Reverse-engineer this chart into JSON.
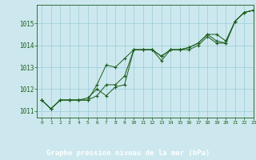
{
  "xlabel": "Graphe pression niveau de la mer (hPa)",
  "xlim": [
    -0.5,
    23
  ],
  "ylim": [
    1010.7,
    1015.85
  ],
  "yticks": [
    1011,
    1012,
    1013,
    1014,
    1015
  ],
  "xticks": [
    0,
    1,
    2,
    3,
    4,
    5,
    6,
    7,
    8,
    9,
    10,
    11,
    12,
    13,
    14,
    15,
    16,
    17,
    18,
    19,
    20,
    21,
    22,
    23
  ],
  "bg_color": "#cce8ee",
  "grid_color": "#99ccd6",
  "line_color": "#1a5c1a",
  "xlabel_bg": "#1a5c1a",
  "xlabel_fg": "#ffffff",
  "series": [
    [
      1011.5,
      1011.1,
      1011.5,
      1011.5,
      1011.5,
      1011.5,
      1011.7,
      1012.2,
      1012.2,
      1012.6,
      1013.8,
      1013.8,
      1013.8,
      1013.5,
      1013.8,
      1013.8,
      1013.9,
      1014.1,
      1014.5,
      1014.5,
      1014.2,
      1015.1,
      1015.5,
      1015.6
    ],
    [
      1011.5,
      1011.1,
      1011.5,
      1011.5,
      1011.5,
      1011.6,
      1012.0,
      1011.7,
      1012.1,
      1012.2,
      1013.8,
      1013.8,
      1013.8,
      1013.3,
      1013.8,
      1013.8,
      1013.8,
      1014.0,
      1014.4,
      1014.1,
      1014.1,
      1015.1,
      1015.5,
      1015.6
    ],
    [
      1011.5,
      1011.1,
      1011.5,
      1011.5,
      1011.5,
      1011.5,
      1012.2,
      1013.1,
      1013.0,
      1013.4,
      1013.8,
      1013.8,
      1013.8,
      1013.5,
      1013.8,
      1013.8,
      1013.9,
      1014.1,
      1014.5,
      1014.2,
      1014.1,
      1015.1,
      1015.5,
      1015.6
    ]
  ]
}
